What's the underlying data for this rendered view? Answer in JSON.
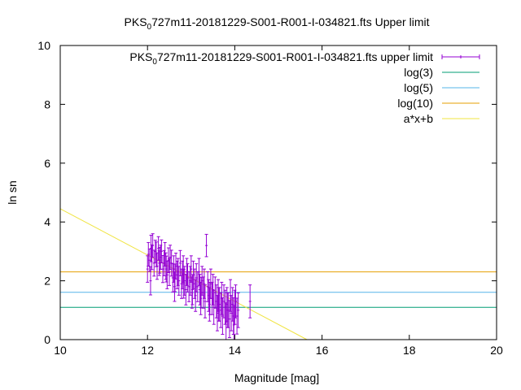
{
  "chart_data": {
    "type": "scatter",
    "title_main": "PKS",
    "title_sub": "0",
    "title_rest": "727m11-20181229-S001-R001-I-034821.fts Upper limit",
    "xlabel": "Magnitude [mag]",
    "ylabel": "ln sn",
    "xlim": [
      10,
      20
    ],
    "ylim": [
      0,
      10
    ],
    "x_ticks": [
      "10",
      "12",
      "14",
      "16",
      "18",
      "20"
    ],
    "y_ticks": [
      "0",
      "2",
      "4",
      "6",
      "8",
      "10"
    ],
    "grid": false,
    "legend_position": "top-right",
    "legend": [
      {
        "sub_prefix": "PKS",
        "sub": "0",
        "label": "727m11-20181229-S001-R001-I-034821.fts upper limit",
        "color": "#9400d3",
        "kind": "errorbar"
      },
      {
        "label": "log(3)",
        "color": "#009e73",
        "kind": "line"
      },
      {
        "label": "log(5)",
        "color": "#56b4e9",
        "kind": "line"
      },
      {
        "label": "log(10)",
        "color": "#e69f00",
        "kind": "line"
      },
      {
        "label": "a*x+b",
        "color": "#f0e442",
        "kind": "line"
      }
    ],
    "hlines": [
      {
        "name": "log(3)",
        "y": 1.0986,
        "color": "#009e73"
      },
      {
        "name": "log(5)",
        "y": 1.6094,
        "color": "#56b4e9"
      },
      {
        "name": "log(10)",
        "y": 2.3026,
        "color": "#e69f00"
      }
    ],
    "fit_line": {
      "name": "a*x+b",
      "a": -0.787,
      "b": 12.32,
      "color": "#f0e442"
    },
    "series": [
      {
        "color": "#9400d3",
        "x": [
          12.0,
          12.02,
          12.05,
          12.08,
          12.1,
          12.12,
          12.15,
          12.18,
          12.2,
          12.22,
          12.25,
          12.28,
          12.3,
          12.32,
          12.35,
          12.38,
          12.4,
          12.42,
          12.45,
          12.48,
          12.5,
          12.52,
          12.55,
          12.58,
          12.6,
          12.62,
          12.65,
          12.68,
          12.7,
          12.72,
          12.75,
          12.78,
          12.8,
          12.82,
          12.85,
          12.88,
          12.9,
          12.92,
          12.95,
          12.98,
          13.0,
          13.02,
          13.05,
          13.08,
          13.1,
          13.12,
          13.15,
          13.18,
          13.2,
          13.22,
          13.25,
          13.28,
          13.3,
          13.32,
          13.35,
          13.38,
          13.4,
          13.42,
          13.45,
          13.48,
          13.5,
          13.52,
          13.55,
          13.58,
          13.6,
          13.62,
          13.65,
          13.68,
          13.7,
          13.72,
          13.75,
          13.78,
          13.8,
          13.82,
          13.85,
          13.88,
          13.9,
          13.92,
          13.95,
          13.98,
          14.0,
          14.02,
          14.05,
          14.08,
          14.35,
          12.07,
          12.27,
          12.43,
          12.63,
          12.83,
          13.03,
          13.23,
          13.43,
          13.63,
          13.83,
          13.97
        ],
        "y": [
          2.4,
          2.9,
          2.7,
          3.1,
          2.8,
          3.2,
          2.6,
          3.0,
          2.9,
          2.5,
          3.1,
          2.7,
          2.8,
          3.0,
          2.4,
          2.6,
          2.9,
          2.5,
          2.2,
          2.7,
          2.3,
          2.8,
          2.6,
          2.1,
          2.4,
          1.8,
          2.5,
          2.2,
          2.3,
          2.0,
          2.6,
          1.9,
          2.2,
          2.4,
          2.0,
          1.7,
          2.3,
          2.1,
          1.8,
          2.0,
          2.4,
          1.6,
          2.2,
          1.9,
          1.5,
          2.1,
          1.8,
          2.3,
          1.7,
          1.4,
          2.0,
          1.6,
          1.9,
          1.3,
          3.2,
          1.8,
          1.5,
          1.2,
          1.9,
          1.4,
          1.7,
          1.1,
          1.6,
          1.3,
          0.9,
          1.5,
          1.2,
          1.0,
          1.4,
          0.8,
          1.3,
          1.1,
          0.6,
          1.2,
          1.0,
          0.7,
          1.5,
          0.9,
          1.2,
          0.5,
          1.1,
          1.3,
          0.8,
          1.0,
          1.3,
          2.0,
          2.6,
          2.4,
          2.1,
          1.9,
          1.7,
          1.6,
          1.4,
          1.2,
          1.0,
          0.8
        ],
        "err": [
          0.45,
          0.4,
          0.38,
          0.45,
          0.42,
          0.4,
          0.44,
          0.38,
          0.42,
          0.45,
          0.4,
          0.44,
          0.41,
          0.39,
          0.46,
          0.43,
          0.4,
          0.45,
          0.47,
          0.42,
          0.46,
          0.41,
          0.44,
          0.48,
          0.45,
          0.5,
          0.44,
          0.47,
          0.46,
          0.49,
          0.43,
          0.5,
          0.47,
          0.45,
          0.49,
          0.52,
          0.46,
          0.48,
          0.51,
          0.49,
          0.45,
          0.53,
          0.47,
          0.5,
          0.54,
          0.48,
          0.51,
          0.46,
          0.52,
          0.55,
          0.49,
          0.53,
          0.5,
          0.56,
          0.38,
          0.51,
          0.54,
          0.57,
          0.5,
          0.55,
          0.52,
          0.58,
          0.53,
          0.56,
          0.6,
          0.54,
          0.57,
          0.59,
          0.55,
          0.62,
          0.56,
          0.58,
          0.65,
          0.57,
          0.59,
          0.63,
          0.54,
          0.6,
          0.57,
          0.66,
          0.58,
          0.56,
          0.61,
          0.59,
          0.56,
          0.48,
          0.42,
          0.44,
          0.47,
          0.49,
          0.51,
          0.52,
          0.55,
          0.57,
          0.59,
          0.62
        ]
      }
    ]
  }
}
